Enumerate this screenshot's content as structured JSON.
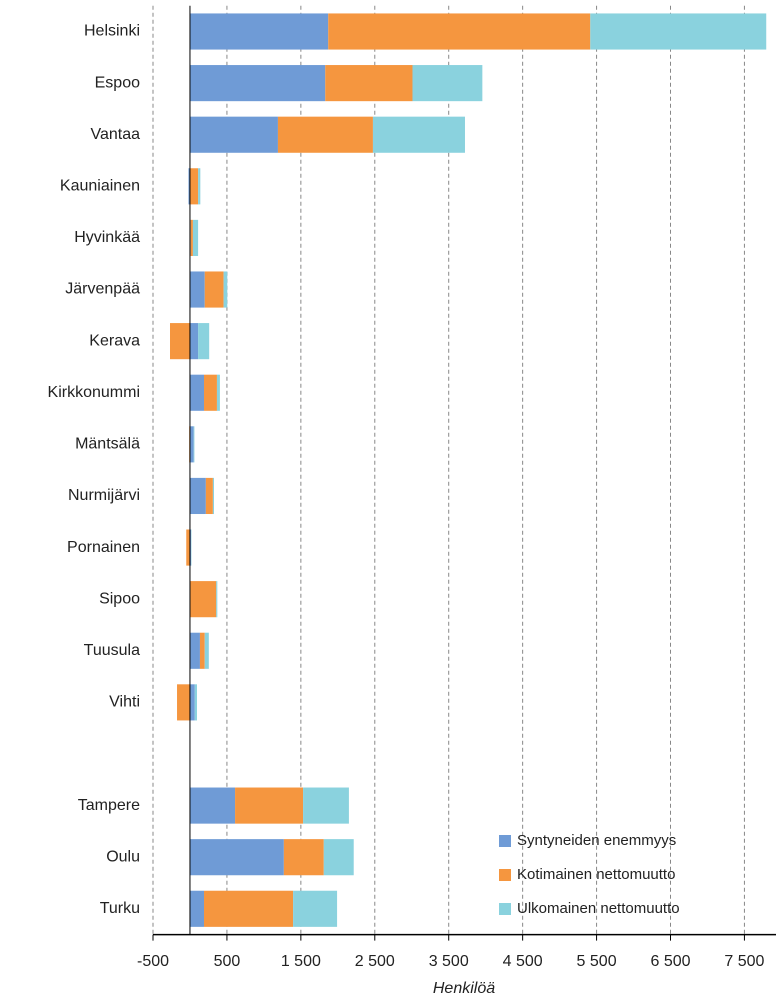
{
  "chart_data": {
    "type": "stacked-barh",
    "x_label": "Henkilöä",
    "categories": [
      "Helsinki",
      "Espoo",
      "Vantaa",
      "Kauniainen",
      "Hyvinkää",
      "Järvenpää",
      "Kerava",
      "Kirkkonummi",
      "Mäntsälä",
      "Nurmijärvi",
      "Pornainen",
      "Sipoo",
      "Tuusula",
      "Vihti",
      null,
      "Tampere",
      "Oulu",
      "Turku"
    ],
    "series": [
      {
        "name": "Syntyneiden enemmyys",
        "color": "#6f9bd6",
        "values": [
          1870,
          1830,
          1190,
          -20,
          10,
          200,
          110,
          190,
          50,
          215,
          15,
          5,
          135,
          65,
          null,
          610,
          1270,
          190
        ]
      },
      {
        "name": "Kotimainen nettomuutto",
        "color": "#f5963f",
        "values": [
          3545,
          1180,
          1285,
          110,
          30,
          255,
          -270,
          175,
          -10,
          95,
          -50,
          350,
          65,
          -175,
          null,
          920,
          540,
          1205
        ]
      },
      {
        "name": "Ulkomainen nettomuutto",
        "color": "#8ad2de",
        "values": [
          2380,
          945,
          1245,
          30,
          70,
          50,
          150,
          40,
          10,
          15,
          5,
          15,
          55,
          30,
          null,
          620,
          405,
          595
        ]
      }
    ],
    "xlim": [
      -500,
      7900
    ],
    "xticks": [
      -500,
      500,
      {
        "value": 1500,
        "label": "1 500"
      },
      {
        "value": 2500,
        "label": "2 500"
      },
      {
        "value": 3500,
        "label": "3 500"
      },
      {
        "value": 4500,
        "label": "4 500"
      },
      {
        "value": 5500,
        "label": "5 500"
      },
      {
        "value": 6500,
        "label": "6 500"
      },
      {
        "value": 7500,
        "label": "7 500"
      }
    ],
    "grid": true,
    "legend": "lower right"
  }
}
